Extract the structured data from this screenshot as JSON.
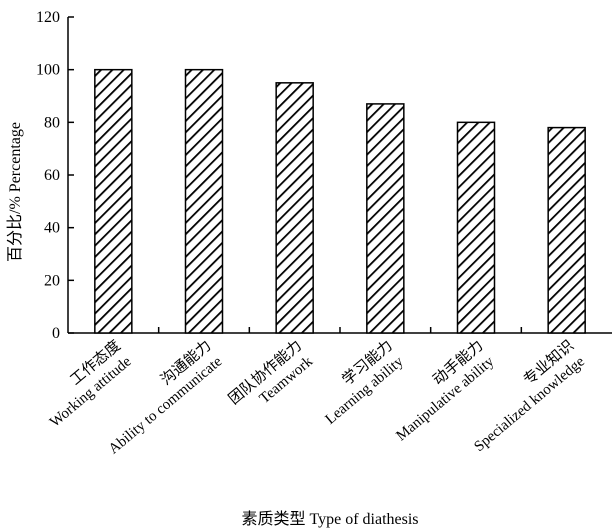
{
  "chart_data": {
    "type": "bar",
    "title": "",
    "xlabel": "素质类型 Type of diathesis",
    "ylabel": "百分比/% Percentage",
    "ylim": [
      0,
      120
    ],
    "yticks": [
      "0",
      "20",
      "40",
      "60",
      "80",
      "100",
      "120"
    ],
    "categories": [
      {
        "zh": "工作态度",
        "en": "Working attitude"
      },
      {
        "zh": "沟通能力",
        "en": "Ability to communicate"
      },
      {
        "zh": "团队协作能力",
        "en": "Teamwork"
      },
      {
        "zh": "学习能力",
        "en": "Learning ability"
      },
      {
        "zh": "动手能力",
        "en": "Manipulative ability"
      },
      {
        "zh": "专业知识",
        "en": "Specialized knowledge"
      }
    ],
    "values": [
      100,
      100,
      95,
      87,
      80,
      78
    ],
    "bar_fill": "diagonal hatch",
    "grid": false,
    "legend": "none"
  }
}
